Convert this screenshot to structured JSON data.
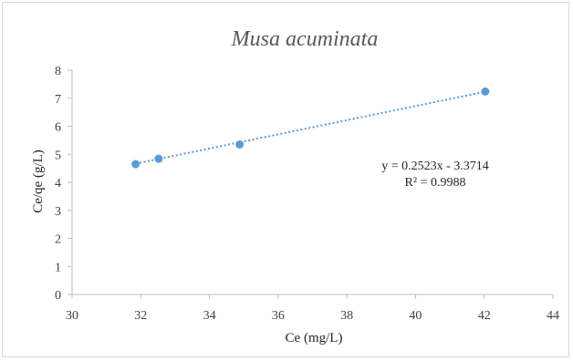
{
  "chart_data": {
    "type": "scatter",
    "title": "Musa acuminata",
    "xlabel": "Ce (mg/L)",
    "ylabel": "Ce/qe (g/L)",
    "xlim": [
      30,
      44
    ],
    "ylim": [
      0,
      8
    ],
    "x_ticks": [
      30,
      32,
      34,
      36,
      38,
      40,
      42,
      44
    ],
    "y_ticks": [
      0,
      1,
      2,
      3,
      4,
      5,
      6,
      7,
      8
    ],
    "grid": false,
    "series": [
      {
        "x": [
          31.85,
          32.52,
          34.88,
          42.03
        ],
        "y": [
          4.65,
          4.84,
          5.35,
          7.24
        ],
        "color": "#5b9bd5",
        "trendline": {
          "type": "linear",
          "slope": 0.2523,
          "intercept": -3.3714,
          "style": "dotted"
        }
      }
    ],
    "annotations": [
      "y = 0.2523x - 3.3714",
      "R² = 0.9988"
    ]
  }
}
